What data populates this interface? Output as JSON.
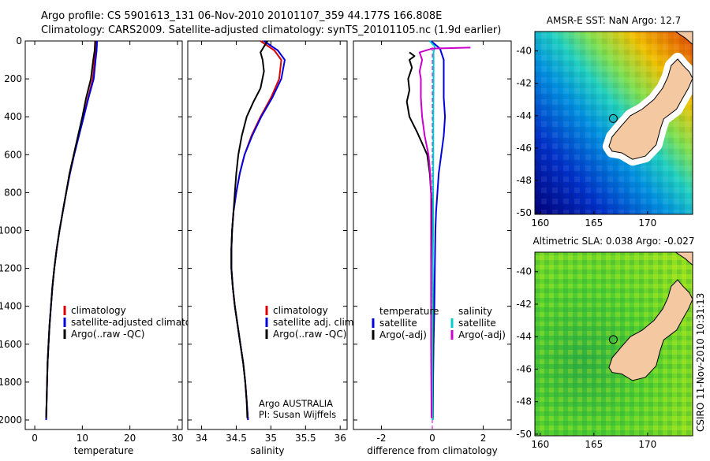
{
  "header": {
    "line1": "Argo profile: CS 5901613_131 06-Nov-2010 20101107_359 44.177S 166.808E",
    "line2": "Climatology: CARS2009. Satellite-adjusted climatology: synTS_20101105.nc (1.9d earlier)"
  },
  "side_stamp": "CSIRO 11-Nov-2010 10:31:13",
  "chart_data": [
    {
      "type": "line",
      "xlabel": "temperature",
      "xlim": [
        -2,
        31
      ],
      "ylim": [
        0,
        2050
      ],
      "y_reversed": true,
      "xticks": [
        0,
        10,
        20,
        30
      ],
      "yticks": [
        0,
        200,
        400,
        600,
        800,
        1000,
        1200,
        1400,
        1600,
        1800,
        2000
      ],
      "legend": [
        "climatology",
        "satellite-adjusted climatology",
        "Argo(..raw -QC)"
      ],
      "series": [
        {
          "name": "climatology",
          "color": "#dd0000",
          "points": [
            [
              13,
              0
            ],
            [
              12.9,
              50
            ],
            [
              12.6,
              100
            ],
            [
              12.2,
              200
            ],
            [
              11.2,
              300
            ],
            [
              10.2,
              400
            ],
            [
              9.2,
              500
            ],
            [
              8.2,
              600
            ],
            [
              7.3,
              700
            ],
            [
              6.6,
              800
            ],
            [
              5.9,
              900
            ],
            [
              5.2,
              1000
            ],
            [
              4.6,
              1100
            ],
            [
              4.1,
              1200
            ],
            [
              3.7,
              1300
            ],
            [
              3.4,
              1400
            ],
            [
              3.1,
              1500
            ],
            [
              2.9,
              1600
            ],
            [
              2.7,
              1700
            ],
            [
              2.6,
              1800
            ],
            [
              2.5,
              1900
            ],
            [
              2.4,
              2000
            ]
          ]
        },
        {
          "name": "satellite-adjusted climatology",
          "color": "#0000dd",
          "points": [
            [
              13.1,
              0
            ],
            [
              13,
              50
            ],
            [
              12.8,
              100
            ],
            [
              12.4,
              200
            ],
            [
              11.3,
              300
            ],
            [
              10.3,
              400
            ],
            [
              9.3,
              500
            ],
            [
              8.3,
              600
            ],
            [
              7.4,
              700
            ],
            [
              6.6,
              800
            ],
            [
              5.9,
              900
            ],
            [
              5.2,
              1000
            ],
            [
              4.6,
              1100
            ],
            [
              4.1,
              1200
            ],
            [
              3.7,
              1300
            ],
            [
              3.4,
              1400
            ],
            [
              3.1,
              1500
            ],
            [
              2.9,
              1600
            ],
            [
              2.7,
              1700
            ],
            [
              2.6,
              1800
            ],
            [
              2.5,
              1900
            ],
            [
              2.4,
              2000
            ]
          ]
        },
        {
          "name": "Argo(..raw -QC)",
          "color": "#000000",
          "points": [
            [
              12.7,
              0
            ],
            [
              12.6,
              50
            ],
            [
              12.3,
              100
            ],
            [
              11.8,
              200
            ],
            [
              10.8,
              300
            ],
            [
              10,
              400
            ],
            [
              9.1,
              500
            ],
            [
              8.2,
              600
            ],
            [
              7.3,
              700
            ],
            [
              6.6,
              800
            ],
            [
              5.9,
              900
            ],
            [
              5.2,
              1000
            ],
            [
              4.6,
              1100
            ],
            [
              4.1,
              1200
            ],
            [
              3.7,
              1300
            ],
            [
              3.4,
              1400
            ],
            [
              3.1,
              1500
            ],
            [
              2.9,
              1600
            ],
            [
              2.7,
              1700
            ],
            [
              2.6,
              1800
            ],
            [
              2.5,
              1900
            ],
            [
              2.4,
              1990
            ]
          ]
        }
      ]
    },
    {
      "type": "line",
      "xlabel": "salinity",
      "xlim": [
        33.8,
        36.1
      ],
      "ylim": [
        0,
        2050
      ],
      "y_reversed": true,
      "xticks": [
        34,
        34.5,
        35,
        35.5,
        36
      ],
      "legend": [
        "climatology",
        "satellite adj. clim.",
        "Argo(..raw -QC)"
      ],
      "annotation": [
        "Argo AUSTRALIA",
        "PI: Susan Wijffels"
      ],
      "series": [
        {
          "name": "climatology",
          "color": "#dd0000",
          "points": [
            [
              34.85,
              0
            ],
            [
              35.05,
              50
            ],
            [
              35.15,
              100
            ],
            [
              35.12,
              200
            ],
            [
              35.0,
              300
            ],
            [
              34.85,
              400
            ],
            [
              34.72,
              500
            ],
            [
              34.62,
              600
            ],
            [
              34.55,
              700
            ],
            [
              34.5,
              800
            ],
            [
              34.46,
              900
            ],
            [
              34.44,
              1000
            ],
            [
              34.43,
              1100
            ],
            [
              34.43,
              1200
            ],
            [
              34.45,
              1300
            ],
            [
              34.48,
              1400
            ],
            [
              34.52,
              1500
            ],
            [
              34.56,
              1600
            ],
            [
              34.6,
              1700
            ],
            [
              34.63,
              1800
            ],
            [
              34.65,
              1900
            ],
            [
              34.67,
              2000
            ]
          ]
        },
        {
          "name": "satellite adj. clim.",
          "color": "#0000dd",
          "points": [
            [
              34.9,
              0
            ],
            [
              35.1,
              50
            ],
            [
              35.2,
              100
            ],
            [
              35.15,
              200
            ],
            [
              35.02,
              300
            ],
            [
              34.86,
              400
            ],
            [
              34.73,
              500
            ],
            [
              34.62,
              600
            ],
            [
              34.55,
              700
            ],
            [
              34.5,
              800
            ],
            [
              34.46,
              900
            ],
            [
              34.44,
              1000
            ],
            [
              34.43,
              1100
            ],
            [
              34.43,
              1200
            ],
            [
              34.45,
              1300
            ],
            [
              34.48,
              1400
            ],
            [
              34.52,
              1500
            ],
            [
              34.56,
              1600
            ],
            [
              34.6,
              1700
            ],
            [
              34.63,
              1800
            ],
            [
              34.65,
              1900
            ],
            [
              34.67,
              2000
            ]
          ]
        },
        {
          "name": "Argo(..raw -QC)",
          "color": "#000000",
          "points": [
            [
              34.95,
              0
            ],
            [
              34.9,
              30
            ],
            [
              34.85,
              60
            ],
            [
              34.88,
              100
            ],
            [
              34.9,
              160
            ],
            [
              34.85,
              250
            ],
            [
              34.75,
              320
            ],
            [
              34.65,
              400
            ],
            [
              34.58,
              500
            ],
            [
              34.53,
              600
            ],
            [
              34.5,
              700
            ],
            [
              34.48,
              800
            ],
            [
              34.46,
              900
            ],
            [
              34.44,
              1000
            ],
            [
              34.43,
              1100
            ],
            [
              34.43,
              1200
            ],
            [
              34.45,
              1300
            ],
            [
              34.48,
              1400
            ],
            [
              34.52,
              1500
            ],
            [
              34.56,
              1600
            ],
            [
              34.6,
              1700
            ],
            [
              34.63,
              1800
            ],
            [
              34.65,
              1900
            ],
            [
              34.66,
              1990
            ]
          ]
        }
      ]
    },
    {
      "type": "line",
      "xlabel": "difference from climatology",
      "xlim": [
        -3.1,
        3.1
      ],
      "ylim": [
        0,
        2050
      ],
      "y_reversed": true,
      "xticks": [
        -2,
        0,
        2
      ],
      "legend_headers": [
        "temperature",
        "salinity"
      ],
      "legend": [
        "satellite",
        "Argo(-adj)",
        "satellite",
        "Argo(-adj)"
      ],
      "series": [
        {
          "name": "temperature satellite",
          "color": "#0000dd",
          "points": [
            [
              -0.05,
              0
            ],
            [
              0.3,
              40
            ],
            [
              0.45,
              100
            ],
            [
              0.45,
              200
            ],
            [
              0.45,
              300
            ],
            [
              0.5,
              400
            ],
            [
              0.45,
              500
            ],
            [
              0.35,
              600
            ],
            [
              0.25,
              700
            ],
            [
              0.2,
              800
            ],
            [
              0.15,
              900
            ],
            [
              0.12,
              1000
            ],
            [
              0.1,
              1200
            ],
            [
              0.08,
              1400
            ],
            [
              0.05,
              1600
            ],
            [
              0.03,
              1800
            ],
            [
              0.02,
              2000
            ]
          ]
        },
        {
          "name": "temperature Argo(-adj)",
          "color": "#000000",
          "points": [
            [
              -0.9,
              60
            ],
            [
              -0.7,
              80
            ],
            [
              -0.9,
              100
            ],
            [
              -0.8,
              140
            ],
            [
              -0.95,
              200
            ],
            [
              -0.9,
              260
            ],
            [
              -1.0,
              320
            ],
            [
              -0.9,
              400
            ],
            [
              -0.6,
              480
            ],
            [
              -0.4,
              540
            ],
            [
              -0.2,
              600
            ],
            [
              -0.1,
              700
            ],
            [
              -0.05,
              800
            ],
            [
              0,
              900
            ],
            [
              0,
              1000
            ],
            [
              0.02,
              1200
            ],
            [
              0.03,
              1400
            ],
            [
              0.03,
              1600
            ],
            [
              0.02,
              1800
            ],
            [
              0.02,
              1990
            ]
          ]
        },
        {
          "name": "salinity satellite",
          "color": "#00cccc",
          "points": [
            [
              -0.1,
              0
            ],
            [
              0.1,
              30
            ],
            [
              0.05,
              60
            ],
            [
              0.05,
              100
            ],
            [
              0.05,
              200
            ],
            [
              0.04,
              400
            ],
            [
              0.04,
              600
            ],
            [
              0.03,
              800
            ],
            [
              0.03,
              1000
            ],
            [
              0.02,
              1200
            ],
            [
              0.02,
              1400
            ],
            [
              0.01,
              1600
            ],
            [
              0.01,
              1800
            ],
            [
              0.01,
              2000
            ]
          ]
        },
        {
          "name": "salinity Argo(-adj)",
          "color": "#cc00cc",
          "points": [
            [
              1.5,
              35
            ],
            [
              0,
              40
            ],
            [
              -0.5,
              60
            ],
            [
              -0.4,
              100
            ],
            [
              -0.5,
              160
            ],
            [
              -0.45,
              200
            ],
            [
              -0.45,
              300
            ],
            [
              -0.4,
              400
            ],
            [
              -0.3,
              500
            ],
            [
              -0.15,
              600
            ],
            [
              -0.08,
              700
            ],
            [
              -0.05,
              800
            ],
            [
              -0.05,
              1000
            ],
            [
              -0.05,
              1200
            ],
            [
              -0.05,
              1400
            ],
            [
              -0.05,
              1600
            ],
            [
              -0.04,
              1800
            ],
            [
              -0.03,
              1990
            ]
          ]
        }
      ]
    },
    {
      "type": "heatmap",
      "title": "AMSR-E SST: NaN Argo: 12.7",
      "xlim": [
        159.5,
        174.2
      ],
      "ylim": [
        -50.1,
        -38.8
      ],
      "xticks": [
        160,
        165,
        170
      ],
      "yticks": [
        -40,
        -42,
        -44,
        -46,
        -48,
        -50
      ],
      "argo_position": [
        166.808,
        -44.177
      ],
      "colormap": "jet"
    },
    {
      "type": "heatmap",
      "title": "Altimetric SLA: 0.038 Argo: -0.027",
      "xlim": [
        159.5,
        174.2
      ],
      "ylim": [
        -50.1,
        -38.8
      ],
      "xticks": [
        160,
        165,
        170
      ],
      "yticks": [
        -40,
        -42,
        -44,
        -46,
        -48,
        -50
      ],
      "argo_position": [
        166.808,
        -44.177
      ],
      "colormap": "jet"
    }
  ]
}
